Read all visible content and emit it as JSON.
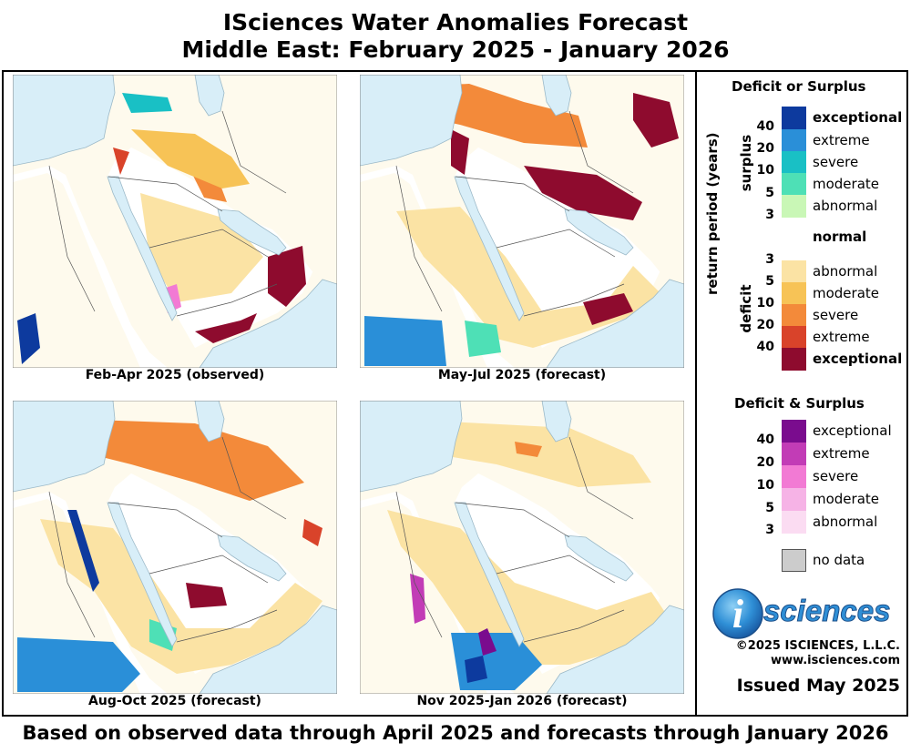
{
  "title_line1": "ISciences Water Anomalies Forecast",
  "title_line2": "Middle East: February 2025 - January 2026",
  "footer": "Based on observed data through April 2025 and forecasts through January 2026",
  "maps": [
    {
      "caption": "Feb-Apr 2025 (observed)"
    },
    {
      "caption": "May-Jul 2025 (forecast)"
    },
    {
      "caption": "Aug-Oct 2025 (forecast)"
    },
    {
      "caption": "Nov 2025-Jan 2026 (forecast)"
    }
  ],
  "legend": {
    "title_main": "Deficit or Surplus",
    "axis_label": "return period (years)",
    "surplus_label": "surplus",
    "deficit_label": "deficit",
    "normal_label": "normal",
    "surplus_classes": [
      {
        "label": "exceptional",
        "color": "#0d3a9e"
      },
      {
        "label": "extreme",
        "color": "#2a8fd8"
      },
      {
        "label": "severe",
        "color": "#19c0c5"
      },
      {
        "label": "moderate",
        "color": "#4ee0b6"
      },
      {
        "label": "abnormal",
        "color": "#c9f7b6"
      }
    ],
    "surplus_numbers": [
      "40",
      "20",
      "10",
      "5",
      "3"
    ],
    "deficit_numbers": [
      "3",
      "5",
      "10",
      "20",
      "40"
    ],
    "deficit_classes": [
      {
        "label": "abnormal",
        "color": "#fbe3a4"
      },
      {
        "label": "moderate",
        "color": "#f7c356"
      },
      {
        "label": "severe",
        "color": "#f38a3a"
      },
      {
        "label": "extreme",
        "color": "#d9432a"
      },
      {
        "label": "exceptional",
        "color": "#8e0b2e"
      }
    ],
    "both_title": "Deficit & Surplus",
    "both_classes": [
      {
        "label": "exceptional",
        "color": "#7a0c8e"
      },
      {
        "label": "extreme",
        "color": "#c23cb6"
      },
      {
        "label": "severe",
        "color": "#f27ad4"
      },
      {
        "label": "moderate",
        "color": "#f6b3e6"
      },
      {
        "label": "abnormal",
        "color": "#fbdcf2"
      }
    ],
    "both_numbers": [
      "40",
      "20",
      "10",
      "5",
      "3"
    ],
    "no_data_label": "no data",
    "no_data_color": "#cccccc"
  },
  "logo_text": "sciences",
  "logo_letter": "i",
  "copyright": "©2025 ISCIENCES, L.L.C.",
  "website": "www.isciences.com",
  "issued": "Issued May 2025",
  "colors": {
    "water": "#d8eef8",
    "land_normal": "#ffffff",
    "border": "#555555"
  }
}
